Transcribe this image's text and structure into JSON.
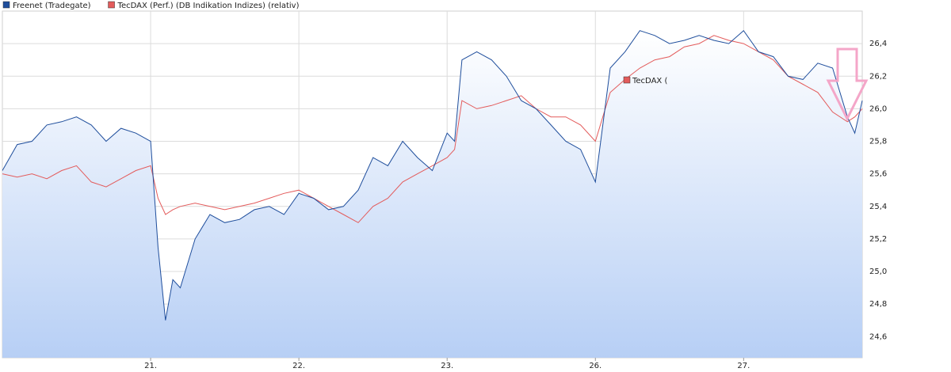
{
  "chart_data": {
    "type": "line",
    "x": [
      0.0,
      0.1,
      0.2,
      0.3,
      0.4,
      0.5,
      0.6,
      0.7,
      0.8,
      0.9,
      1.0,
      1.05,
      1.1,
      1.15,
      1.2,
      1.3,
      1.4,
      1.5,
      1.6,
      1.7,
      1.8,
      1.9,
      2.0,
      2.1,
      2.2,
      2.3,
      2.4,
      2.5,
      2.6,
      2.7,
      2.8,
      2.9,
      3.0,
      3.05,
      3.1,
      3.2,
      3.3,
      3.4,
      3.5,
      3.6,
      3.7,
      3.8,
      3.9,
      4.0,
      4.1,
      4.2,
      4.3,
      4.4,
      4.5,
      4.6,
      4.7,
      4.8,
      4.9,
      5.0,
      5.1,
      5.2,
      5.3,
      5.4,
      5.5,
      5.6,
      5.7,
      5.75,
      5.8
    ],
    "series": [
      {
        "name": "Freenet (Tradegate)",
        "color": "#1f4e9c",
        "values": [
          25.62,
          25.78,
          25.8,
          25.9,
          25.92,
          25.95,
          25.9,
          25.8,
          25.88,
          25.85,
          25.8,
          25.15,
          24.7,
          24.95,
          24.9,
          25.2,
          25.35,
          25.3,
          25.32,
          25.38,
          25.4,
          25.35,
          25.48,
          25.45,
          25.38,
          25.4,
          25.5,
          25.7,
          25.65,
          25.8,
          25.7,
          25.62,
          25.85,
          25.8,
          26.3,
          26.35,
          26.3,
          26.2,
          26.05,
          26.0,
          25.9,
          25.8,
          25.75,
          25.55,
          26.25,
          26.35,
          26.48,
          26.45,
          26.4,
          26.42,
          26.45,
          26.42,
          26.4,
          26.48,
          26.35,
          26.32,
          26.2,
          26.18,
          26.28,
          26.25,
          25.95,
          25.85,
          26.05
        ]
      },
      {
        "name": "TecDAX (Perf.) (DB Indikation Indizes) (relativ)",
        "color": "#e35b5b",
        "values": [
          25.6,
          25.58,
          25.6,
          25.57,
          25.62,
          25.65,
          25.55,
          25.52,
          25.57,
          25.62,
          25.65,
          25.45,
          25.35,
          25.38,
          25.4,
          25.42,
          25.4,
          25.38,
          25.4,
          25.42,
          25.45,
          25.48,
          25.5,
          25.45,
          25.4,
          25.35,
          25.3,
          25.4,
          25.45,
          25.55,
          25.6,
          25.65,
          25.7,
          25.75,
          26.05,
          26.0,
          26.02,
          26.05,
          26.08,
          26.0,
          25.95,
          25.95,
          25.9,
          25.8,
          26.1,
          26.18,
          26.25,
          26.3,
          26.32,
          26.38,
          26.4,
          26.45,
          26.42,
          26.4,
          26.35,
          26.3,
          26.2,
          26.15,
          26.1,
          25.98,
          25.92,
          25.95,
          26.0
        ]
      }
    ],
    "annotation": "TecDAX (",
    "xlim": [
      0,
      5.8
    ],
    "xticks": [
      {
        "value": 1,
        "label": "21."
      },
      {
        "value": 2,
        "label": "22."
      },
      {
        "value": 3,
        "label": "23."
      },
      {
        "value": 4,
        "label": "26."
      },
      {
        "value": 5,
        "label": "27."
      }
    ],
    "ylim": [
      24.47,
      26.6
    ],
    "yticks": [
      {
        "value": 24.6,
        "label": "24,6"
      },
      {
        "value": 24.8,
        "label": "24,8"
      },
      {
        "value": 25.0,
        "label": "25,0"
      },
      {
        "value": 25.2,
        "label": "25,2"
      },
      {
        "value": 25.4,
        "label": "25,4"
      },
      {
        "value": 25.6,
        "label": "25,6"
      },
      {
        "value": 25.8,
        "label": "25,8"
      },
      {
        "value": 26.0,
        "label": "26,0"
      },
      {
        "value": 26.2,
        "label": "26,2"
      },
      {
        "value": 26.4,
        "label": "26,4"
      }
    ],
    "grid": true
  }
}
